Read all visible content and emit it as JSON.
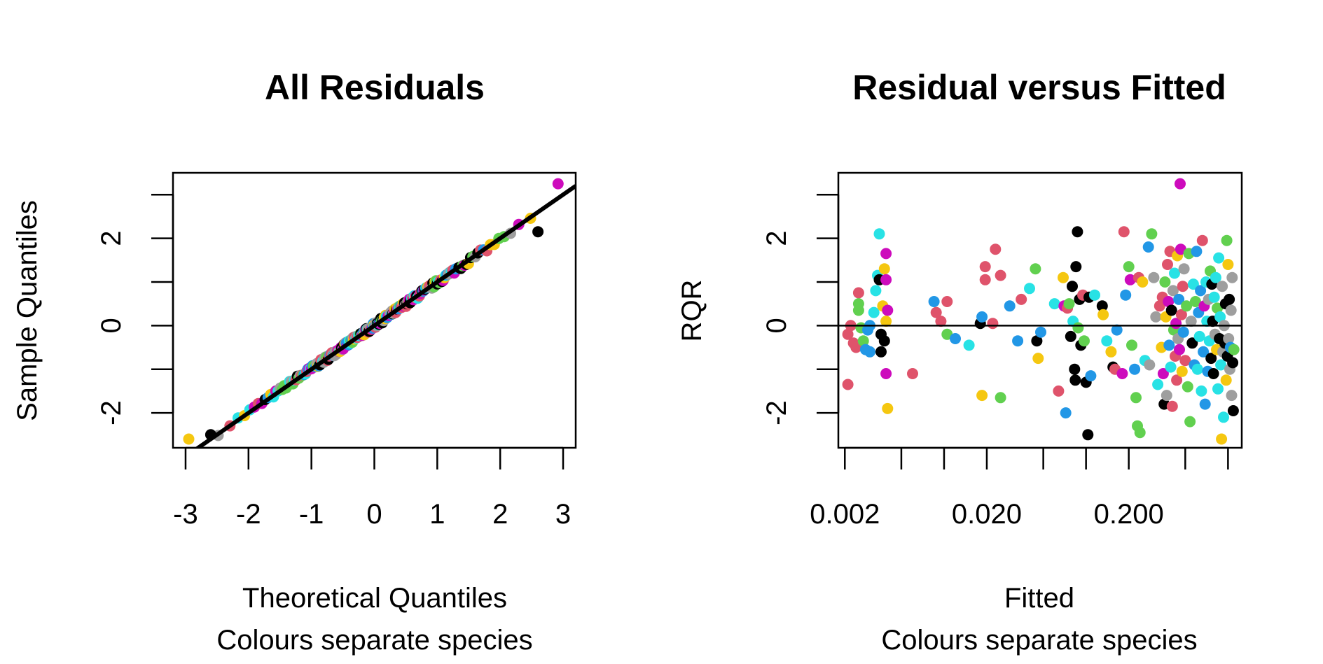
{
  "palette": [
    "#000000",
    "#DF536B",
    "#61D04F",
    "#2297E6",
    "#28E2E5",
    "#CD0BBC",
    "#F5C710",
    "#9E9E9E"
  ],
  "chart_data": [
    {
      "type": "scatter",
      "title": "All Residuals",
      "xlabel": "Theoretical Quantiles",
      "xlabel2": "Colours separate species",
      "ylabel": "Sample Quantiles",
      "xlim": [
        -3.2,
        3.2
      ],
      "ylim": [
        -2.8,
        3.5
      ],
      "x_ticks": [
        -3,
        -2,
        -1,
        0,
        1,
        2,
        3
      ],
      "x_tick_labels": [
        "-3",
        "-2",
        "-1",
        "0",
        "1",
        "2",
        "3"
      ],
      "y_ticks": [
        -3,
        -2,
        -1,
        0,
        1,
        2,
        3
      ],
      "y_tick_labels": [
        {
          "value": -2,
          "label": "-2"
        },
        {
          "value": 0,
          "label": "0"
        },
        {
          "value": 2,
          "label": "2"
        }
      ],
      "reference_line": {
        "intercept": 0,
        "slope": 1.0
      },
      "series_points": 230,
      "extreme_points": [
        {
          "x": -2.95,
          "y": -2.6,
          "color": 6
        },
        {
          "x": -2.6,
          "y": -2.5,
          "color": 0
        },
        {
          "x": 2.6,
          "y": 2.15,
          "color": 0
        },
        {
          "x": 2.92,
          "y": 3.25,
          "color": 5
        }
      ]
    },
    {
      "type": "scatter",
      "title": "Residual versus Fitted",
      "xlabel": "Fitted",
      "xlabel2": "Colours separate species",
      "ylabel": "RQR",
      "x_scale": "log",
      "xlim": [
        0.0018,
        1.25
      ],
      "ylim": [
        -2.8,
        3.5
      ],
      "x_ticks": [
        0.002,
        0.005,
        0.01,
        0.02,
        0.05,
        0.1,
        0.2,
        0.5,
        1
      ],
      "x_tick_labels": [
        {
          "value": 0.002,
          "label": "0.002"
        },
        {
          "value": 0.02,
          "label": "0.020"
        },
        {
          "value": 0.2,
          "label": "0.200"
        }
      ],
      "y_ticks": [
        -3,
        -2,
        -1,
        0,
        1,
        2,
        3
      ],
      "y_tick_labels": [
        {
          "value": -2,
          "label": "-2"
        },
        {
          "value": 0,
          "label": "0"
        },
        {
          "value": 2,
          "label": "2"
        }
      ],
      "hline": 0,
      "points": [
        {
          "x": 0.0021,
          "y": -1.35,
          "color": 1
        },
        {
          "x": 0.0021,
          "y": -0.2,
          "color": 1
        },
        {
          "x": 0.0022,
          "y": 0.0,
          "color": 1
        },
        {
          "x": 0.0023,
          "y": -0.4,
          "color": 1
        },
        {
          "x": 0.0024,
          "y": -0.5,
          "color": 1
        },
        {
          "x": 0.0025,
          "y": 0.75,
          "color": 1
        },
        {
          "x": 0.0025,
          "y": 0.5,
          "color": 2
        },
        {
          "x": 0.0025,
          "y": 0.35,
          "color": 2
        },
        {
          "x": 0.0026,
          "y": -0.05,
          "color": 2
        },
        {
          "x": 0.0027,
          "y": -0.35,
          "color": 2
        },
        {
          "x": 0.0028,
          "y": -0.55,
          "color": 3
        },
        {
          "x": 0.0029,
          "y": -0.1,
          "color": 3
        },
        {
          "x": 0.003,
          "y": 0.0,
          "color": 3
        },
        {
          "x": 0.003,
          "y": -0.6,
          "color": 3
        },
        {
          "x": 0.0032,
          "y": 0.3,
          "color": 4
        },
        {
          "x": 0.0033,
          "y": 0.8,
          "color": 4
        },
        {
          "x": 0.0034,
          "y": 1.15,
          "color": 4
        },
        {
          "x": 0.0035,
          "y": 2.1,
          "color": 4
        },
        {
          "x": 0.0035,
          "y": 1.05,
          "color": 0
        },
        {
          "x": 0.0036,
          "y": -0.2,
          "color": 0
        },
        {
          "x": 0.0036,
          "y": -0.6,
          "color": 0
        },
        {
          "x": 0.0037,
          "y": 0.45,
          "color": 6
        },
        {
          "x": 0.0038,
          "y": 1.3,
          "color": 6
        },
        {
          "x": 0.0038,
          "y": -0.35,
          "color": 0
        },
        {
          "x": 0.0039,
          "y": 1.65,
          "color": 5
        },
        {
          "x": 0.0039,
          "y": 1.05,
          "color": 5
        },
        {
          "x": 0.004,
          "y": 0.35,
          "color": 5
        },
        {
          "x": 0.0039,
          "y": -1.1,
          "color": 5
        },
        {
          "x": 0.004,
          "y": -1.9,
          "color": 6
        },
        {
          "x": 0.0039,
          "y": 0.1,
          "color": 6
        },
        {
          "x": 0.006,
          "y": -1.1,
          "color": 1
        },
        {
          "x": 0.0085,
          "y": 0.55,
          "color": 3
        },
        {
          "x": 0.0088,
          "y": 0.3,
          "color": 1
        },
        {
          "x": 0.0095,
          "y": 0.1,
          "color": 1
        },
        {
          "x": 0.0105,
          "y": 0.55,
          "color": 1
        },
        {
          "x": 0.0105,
          "y": -0.2,
          "color": 2
        },
        {
          "x": 0.012,
          "y": -0.3,
          "color": 3
        },
        {
          "x": 0.015,
          "y": -0.45,
          "color": 4
        },
        {
          "x": 0.018,
          "y": 0.05,
          "color": 0
        },
        {
          "x": 0.0185,
          "y": 0.2,
          "color": 3
        },
        {
          "x": 0.0185,
          "y": -1.6,
          "color": 6
        },
        {
          "x": 0.0195,
          "y": 1.05,
          "color": 1
        },
        {
          "x": 0.0195,
          "y": 1.35,
          "color": 1
        },
        {
          "x": 0.022,
          "y": 0.05,
          "color": 1
        },
        {
          "x": 0.023,
          "y": 1.75,
          "color": 1
        },
        {
          "x": 0.025,
          "y": -1.65,
          "color": 2
        },
        {
          "x": 0.025,
          "y": 1.15,
          "color": 1
        },
        {
          "x": 0.029,
          "y": 0.45,
          "color": 3
        },
        {
          "x": 0.033,
          "y": -0.35,
          "color": 3
        },
        {
          "x": 0.035,
          "y": 0.6,
          "color": 1
        },
        {
          "x": 0.04,
          "y": 0.85,
          "color": 4
        },
        {
          "x": 0.044,
          "y": 1.3,
          "color": 2
        },
        {
          "x": 0.045,
          "y": -0.35,
          "color": 0
        },
        {
          "x": 0.046,
          "y": -0.75,
          "color": 6
        },
        {
          "x": 0.048,
          "y": -0.15,
          "color": 3
        },
        {
          "x": 0.06,
          "y": 0.5,
          "color": 4
        },
        {
          "x": 0.064,
          "y": -1.5,
          "color": 1
        },
        {
          "x": 0.069,
          "y": 1.1,
          "color": 6
        },
        {
          "x": 0.07,
          "y": 0.45,
          "color": 5
        },
        {
          "x": 0.072,
          "y": -2.0,
          "color": 3
        },
        {
          "x": 0.074,
          "y": 0.4,
          "color": 1
        },
        {
          "x": 0.076,
          "y": 0.5,
          "color": 2
        },
        {
          "x": 0.078,
          "y": -0.25,
          "color": 0
        },
        {
          "x": 0.08,
          "y": 0.9,
          "color": 0
        },
        {
          "x": 0.081,
          "y": 0.1,
          "color": 4
        },
        {
          "x": 0.083,
          "y": -1.0,
          "color": 0
        },
        {
          "x": 0.084,
          "y": -1.25,
          "color": 0
        },
        {
          "x": 0.085,
          "y": 1.35,
          "color": 0
        },
        {
          "x": 0.087,
          "y": 2.15,
          "color": 0
        },
        {
          "x": 0.088,
          "y": -0.05,
          "color": 2
        },
        {
          "x": 0.09,
          "y": 0.6,
          "color": 0
        },
        {
          "x": 0.092,
          "y": -0.45,
          "color": 0
        },
        {
          "x": 0.095,
          "y": 0.7,
          "color": 1
        },
        {
          "x": 0.097,
          "y": -0.35,
          "color": 2
        },
        {
          "x": 0.1,
          "y": -1.3,
          "color": 0
        },
        {
          "x": 0.103,
          "y": -2.5,
          "color": 0
        },
        {
          "x": 0.105,
          "y": 0.65,
          "color": 0
        },
        {
          "x": 0.108,
          "y": -1.15,
          "color": 3
        },
        {
          "x": 0.115,
          "y": 0.7,
          "color": 4
        },
        {
          "x": 0.13,
          "y": 0.45,
          "color": 0
        },
        {
          "x": 0.132,
          "y": 0.25,
          "color": 6
        },
        {
          "x": 0.14,
          "y": -0.35,
          "color": 4
        },
        {
          "x": 0.15,
          "y": -0.6,
          "color": 6
        },
        {
          "x": 0.155,
          "y": -0.95,
          "color": 0
        },
        {
          "x": 0.16,
          "y": -1.0,
          "color": 1
        },
        {
          "x": 0.165,
          "y": -0.1,
          "color": 3
        },
        {
          "x": 0.18,
          "y": -1.1,
          "color": 5
        },
        {
          "x": 0.185,
          "y": 2.15,
          "color": 1
        },
        {
          "x": 0.19,
          "y": 0.7,
          "color": 3
        },
        {
          "x": 0.2,
          "y": 1.35,
          "color": 2
        },
        {
          "x": 0.205,
          "y": 1.05,
          "color": 5
        },
        {
          "x": 0.21,
          "y": -0.45,
          "color": 2
        },
        {
          "x": 0.22,
          "y": -1.0,
          "color": 3
        },
        {
          "x": 0.225,
          "y": -1.65,
          "color": 2
        },
        {
          "x": 0.23,
          "y": -2.3,
          "color": 2
        },
        {
          "x": 0.235,
          "y": 1.1,
          "color": 1
        },
        {
          "x": 0.24,
          "y": -2.45,
          "color": 2
        },
        {
          "x": 0.25,
          "y": 1.0,
          "color": 6
        },
        {
          "x": 0.26,
          "y": -0.8,
          "color": 4
        },
        {
          "x": 0.275,
          "y": 1.8,
          "color": 3
        },
        {
          "x": 0.28,
          "y": -0.9,
          "color": 7
        },
        {
          "x": 0.29,
          "y": 2.1,
          "color": 2
        },
        {
          "x": 0.3,
          "y": 1.1,
          "color": 7
        },
        {
          "x": 0.31,
          "y": 0.2,
          "color": 7
        },
        {
          "x": 0.32,
          "y": -1.35,
          "color": 4
        },
        {
          "x": 0.33,
          "y": 0.45,
          "color": 1
        },
        {
          "x": 0.34,
          "y": -0.5,
          "color": 6
        },
        {
          "x": 0.345,
          "y": 0.65,
          "color": 1
        },
        {
          "x": 0.35,
          "y": -1.1,
          "color": 5
        },
        {
          "x": 0.355,
          "y": -1.8,
          "color": 0
        },
        {
          "x": 0.36,
          "y": 1.0,
          "color": 2
        },
        {
          "x": 0.365,
          "y": 0.2,
          "color": 6
        },
        {
          "x": 0.37,
          "y": -1.6,
          "color": 7
        },
        {
          "x": 0.375,
          "y": 1.4,
          "color": 1
        },
        {
          "x": 0.38,
          "y": 0.55,
          "color": 5
        },
        {
          "x": 0.385,
          "y": -0.45,
          "color": 3
        },
        {
          "x": 0.39,
          "y": 1.7,
          "color": 1
        },
        {
          "x": 0.395,
          "y": -0.95,
          "color": 4
        },
        {
          "x": 0.4,
          "y": 0.35,
          "color": 0
        },
        {
          "x": 0.405,
          "y": -1.85,
          "color": 1
        },
        {
          "x": 0.41,
          "y": 0.8,
          "color": 7
        },
        {
          "x": 0.415,
          "y": -0.1,
          "color": 2
        },
        {
          "x": 0.42,
          "y": 1.2,
          "color": 4
        },
        {
          "x": 0.425,
          "y": -0.7,
          "color": 1
        },
        {
          "x": 0.43,
          "y": 0.05,
          "color": 5
        },
        {
          "x": 0.435,
          "y": -1.25,
          "color": 1
        },
        {
          "x": 0.44,
          "y": 1.6,
          "color": 6
        },
        {
          "x": 0.445,
          "y": -0.3,
          "color": 7
        },
        {
          "x": 0.45,
          "y": 0.6,
          "color": 3
        },
        {
          "x": 0.455,
          "y": -0.55,
          "color": 5
        },
        {
          "x": 0.46,
          "y": 3.25,
          "color": 5
        },
        {
          "x": 0.465,
          "y": 1.75,
          "color": 5
        },
        {
          "x": 0.47,
          "y": 0.25,
          "color": 1
        },
        {
          "x": 0.475,
          "y": -1.05,
          "color": 6
        },
        {
          "x": 0.48,
          "y": 0.9,
          "color": 1
        },
        {
          "x": 0.485,
          "y": -0.15,
          "color": 3
        },
        {
          "x": 0.49,
          "y": 1.3,
          "color": 7
        },
        {
          "x": 0.5,
          "y": -0.8,
          "color": 1
        },
        {
          "x": 0.51,
          "y": 0.45,
          "color": 2
        },
        {
          "x": 0.52,
          "y": -1.4,
          "color": 2
        },
        {
          "x": 0.53,
          "y": 1.65,
          "color": 2
        },
        {
          "x": 0.54,
          "y": -2.2,
          "color": 2
        },
        {
          "x": 0.55,
          "y": 0.1,
          "color": 7
        },
        {
          "x": 0.56,
          "y": -0.4,
          "color": 0
        },
        {
          "x": 0.57,
          "y": 0.95,
          "color": 4
        },
        {
          "x": 0.58,
          "y": -0.9,
          "color": 3
        },
        {
          "x": 0.59,
          "y": 0.55,
          "color": 2
        },
        {
          "x": 0.6,
          "y": 1.7,
          "color": 3
        },
        {
          "x": 0.61,
          "y": -1.0,
          "color": 4
        },
        {
          "x": 0.62,
          "y": 0.3,
          "color": 3
        },
        {
          "x": 0.63,
          "y": -0.25,
          "color": 4
        },
        {
          "x": 0.64,
          "y": 0.8,
          "color": 3
        },
        {
          "x": 0.65,
          "y": -1.5,
          "color": 4
        },
        {
          "x": 0.66,
          "y": 1.95,
          "color": 1
        },
        {
          "x": 0.67,
          "y": -0.6,
          "color": 3
        },
        {
          "x": 0.68,
          "y": 0.45,
          "color": 5
        },
        {
          "x": 0.69,
          "y": -1.8,
          "color": 3
        },
        {
          "x": 0.7,
          "y": 1.0,
          "color": 4
        },
        {
          "x": 0.71,
          "y": 0.1,
          "color": 4
        },
        {
          "x": 0.72,
          "y": -1.05,
          "color": 3
        },
        {
          "x": 0.73,
          "y": 0.6,
          "color": 7
        },
        {
          "x": 0.74,
          "y": -0.35,
          "color": 4
        },
        {
          "x": 0.75,
          "y": 1.25,
          "color": 2
        },
        {
          "x": 0.76,
          "y": -0.75,
          "color": 0
        },
        {
          "x": 0.77,
          "y": 0.95,
          "color": 0
        },
        {
          "x": 0.78,
          "y": 0.1,
          "color": 0
        },
        {
          "x": 0.79,
          "y": -1.1,
          "color": 0
        },
        {
          "x": 0.8,
          "y": 0.65,
          "color": 4
        },
        {
          "x": 0.81,
          "y": -0.2,
          "color": 7
        },
        {
          "x": 0.82,
          "y": 1.1,
          "color": 4
        },
        {
          "x": 0.83,
          "y": -0.55,
          "color": 6
        },
        {
          "x": 0.84,
          "y": 0.4,
          "color": 2
        },
        {
          "x": 0.85,
          "y": -1.45,
          "color": 4
        },
        {
          "x": 0.86,
          "y": 1.55,
          "color": 4
        },
        {
          "x": 0.87,
          "y": -0.3,
          "color": 0
        },
        {
          "x": 0.88,
          "y": 0.2,
          "color": 4
        },
        {
          "x": 0.89,
          "y": -0.9,
          "color": 4
        },
        {
          "x": 0.9,
          "y": -2.6,
          "color": 6
        },
        {
          "x": 0.91,
          "y": 0.9,
          "color": 7
        },
        {
          "x": 0.92,
          "y": -0.6,
          "color": 7
        },
        {
          "x": 0.93,
          "y": -2.1,
          "color": 4
        },
        {
          "x": 0.94,
          "y": 0.0,
          "color": 7
        },
        {
          "x": 0.95,
          "y": -0.4,
          "color": 0
        },
        {
          "x": 0.96,
          "y": 0.5,
          "color": 0
        },
        {
          "x": 0.97,
          "y": -1.25,
          "color": 6
        },
        {
          "x": 0.98,
          "y": 1.95,
          "color": 2
        },
        {
          "x": 0.99,
          "y": -0.7,
          "color": 0
        },
        {
          "x": 1.0,
          "y": 1.4,
          "color": 6
        },
        {
          "x": 1.01,
          "y": -0.3,
          "color": 7
        },
        {
          "x": 1.02,
          "y": 0.6,
          "color": 0
        },
        {
          "x": 1.03,
          "y": -1.0,
          "color": 7
        },
        {
          "x": 1.04,
          "y": -0.5,
          "color": 3
        },
        {
          "x": 1.05,
          "y": 0.35,
          "color": 7
        },
        {
          "x": 1.06,
          "y": -1.6,
          "color": 7
        },
        {
          "x": 1.07,
          "y": 1.1,
          "color": 7
        },
        {
          "x": 1.08,
          "y": -0.85,
          "color": 0
        },
        {
          "x": 1.09,
          "y": -1.95,
          "color": 0
        },
        {
          "x": 1.1,
          "y": -0.55,
          "color": 2
        }
      ]
    }
  ]
}
